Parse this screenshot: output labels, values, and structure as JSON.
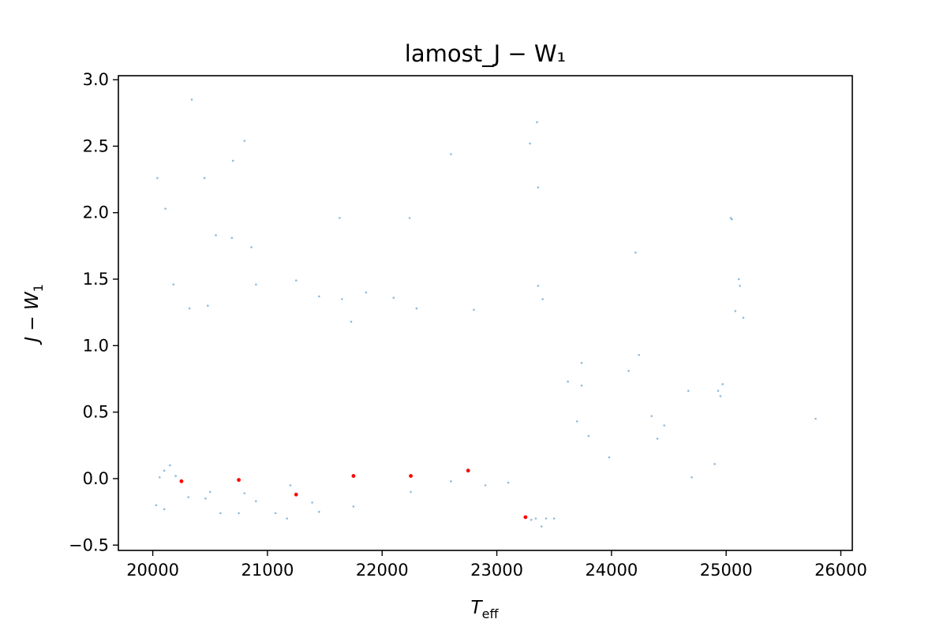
{
  "chart_data": {
    "type": "scatter",
    "title": "lamost_J − W₁",
    "xlabel": "T",
    "xlabel_sub": "eff",
    "ylabel": "J − W",
    "ylabel_sub": "1",
    "xlim": [
      19700,
      26100
    ],
    "ylim": [
      -0.54,
      3.03
    ],
    "xticks": [
      20000,
      21000,
      22000,
      23000,
      24000,
      25000,
      26000
    ],
    "yticks": [
      -0.5,
      0.0,
      0.5,
      1.0,
      1.5,
      2.0,
      2.5,
      3.0
    ],
    "ytick_labels": [
      "−0.5",
      "0.0",
      "0.5",
      "1.0",
      "1.5",
      "2.0",
      "2.5",
      "3.0"
    ],
    "grid": false,
    "series": [
      {
        "color": "#1f77b4",
        "opacity": 0.5,
        "points": [
          [
            20340,
            2.85
          ],
          [
            23350,
            2.68
          ],
          [
            23290,
            2.52
          ],
          [
            20800,
            2.54
          ],
          [
            22600,
            2.44
          ],
          [
            20700,
            2.39
          ],
          [
            20040,
            2.26
          ],
          [
            20450,
            2.26
          ],
          [
            23360,
            2.19
          ],
          [
            20110,
            2.03
          ],
          [
            25040,
            1.96
          ],
          [
            25050,
            1.95
          ],
          [
            21630,
            1.96
          ],
          [
            22240,
            1.96
          ],
          [
            20550,
            1.83
          ],
          [
            20690,
            1.81
          ],
          [
            20860,
            1.74
          ],
          [
            24210,
            1.7
          ],
          [
            21250,
            1.49
          ],
          [
            20180,
            1.46
          ],
          [
            20900,
            1.46
          ],
          [
            23360,
            1.45
          ],
          [
            25110,
            1.5
          ],
          [
            25120,
            1.45
          ],
          [
            21860,
            1.4
          ],
          [
            22100,
            1.36
          ],
          [
            22800,
            1.27
          ],
          [
            23400,
            1.35
          ],
          [
            21450,
            1.37
          ],
          [
            21650,
            1.35
          ],
          [
            22300,
            1.28
          ],
          [
            25080,
            1.26
          ],
          [
            25150,
            1.21
          ],
          [
            20320,
            1.28
          ],
          [
            20480,
            1.3
          ],
          [
            21730,
            1.18
          ],
          [
            23620,
            0.73
          ],
          [
            23740,
            0.7
          ],
          [
            23800,
            0.32
          ],
          [
            23980,
            0.16
          ],
          [
            24150,
            0.81
          ],
          [
            24240,
            0.93
          ],
          [
            24350,
            0.47
          ],
          [
            24400,
            0.3
          ],
          [
            24460,
            0.4
          ],
          [
            24670,
            0.66
          ],
          [
            24700,
            0.01
          ],
          [
            24900,
            0.11
          ],
          [
            24930,
            0.66
          ],
          [
            24950,
            0.62
          ],
          [
            24970,
            0.71
          ],
          [
            25780,
            0.45
          ],
          [
            23700,
            0.43
          ],
          [
            23740,
            0.87
          ],
          [
            20060,
            0.01
          ],
          [
            20100,
            0.06
          ],
          [
            20150,
            0.1
          ],
          [
            20200,
            0.02
          ],
          [
            20310,
            -0.14
          ],
          [
            20460,
            -0.15
          ],
          [
            20590,
            -0.26
          ],
          [
            20750,
            -0.26
          ],
          [
            20900,
            -0.17
          ],
          [
            21070,
            -0.26
          ],
          [
            21170,
            -0.3
          ],
          [
            21390,
            -0.18
          ],
          [
            21450,
            -0.25
          ],
          [
            21750,
            -0.21
          ],
          [
            22250,
            -0.1
          ],
          [
            23300,
            -0.31
          ],
          [
            23340,
            -0.3
          ],
          [
            23430,
            -0.3
          ],
          [
            23500,
            -0.3
          ],
          [
            23390,
            -0.36
          ],
          [
            20030,
            -0.2
          ],
          [
            20100,
            -0.23
          ],
          [
            20500,
            -0.1
          ],
          [
            20800,
            -0.11
          ],
          [
            21200,
            -0.05
          ],
          [
            22600,
            -0.02
          ],
          [
            22900,
            -0.05
          ],
          [
            23100,
            -0.03
          ]
        ]
      },
      {
        "color": "#ff0000",
        "opacity": 1,
        "points": [
          [
            20250,
            -0.02
          ],
          [
            20750,
            -0.01
          ],
          [
            21250,
            -0.12
          ],
          [
            21750,
            0.02
          ],
          [
            22250,
            0.02
          ],
          [
            22750,
            0.06
          ],
          [
            23250,
            -0.29
          ]
        ]
      }
    ]
  }
}
